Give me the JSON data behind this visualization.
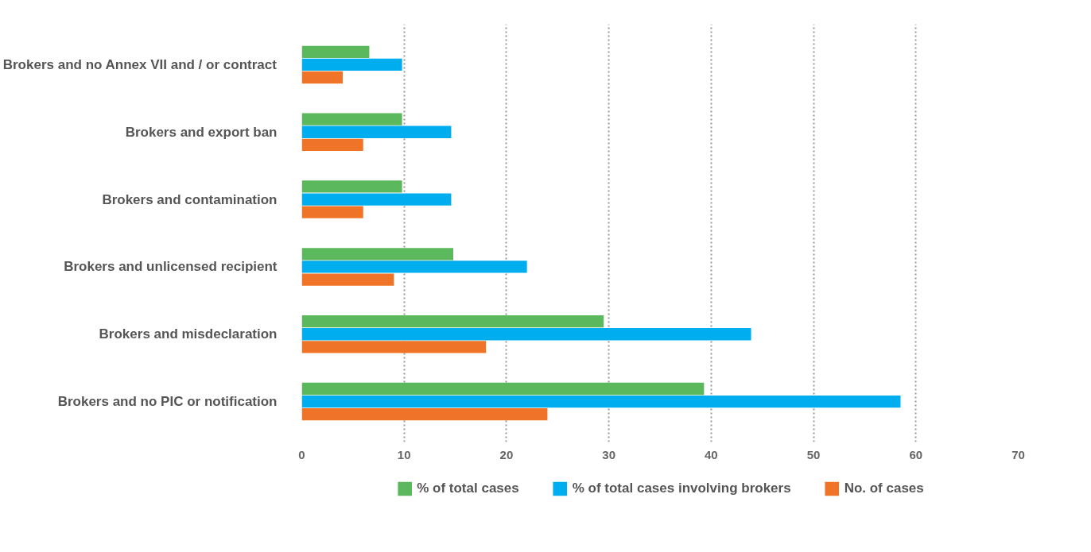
{
  "chart_data": {
    "type": "bar",
    "orientation": "horizontal",
    "categories": [
      "Brokers and no Annex VII and / or contract",
      "Brokers and export ban",
      "Brokers and contamination",
      "Brokers and unlicensed recipient",
      "Brokers and misdeclaration",
      "Brokers and no PIC or notification"
    ],
    "series": [
      {
        "name": "% of total cases",
        "color": "#5cb85c",
        "values": [
          6.6,
          9.8,
          9.8,
          14.8,
          29.5,
          39.3
        ]
      },
      {
        "name": "% of total cases involving brokers",
        "color": "#00aeef",
        "values": [
          9.8,
          14.6,
          14.6,
          22.0,
          43.9,
          58.5
        ]
      },
      {
        "name": "No. of cases",
        "color": "#f07427",
        "values": [
          4,
          6,
          6,
          9,
          18,
          24
        ]
      }
    ],
    "xlim": [
      0,
      70
    ],
    "xticks": [
      0,
      10,
      20,
      30,
      40,
      50,
      60,
      70
    ],
    "grid": "x",
    "legend": "bottom"
  }
}
